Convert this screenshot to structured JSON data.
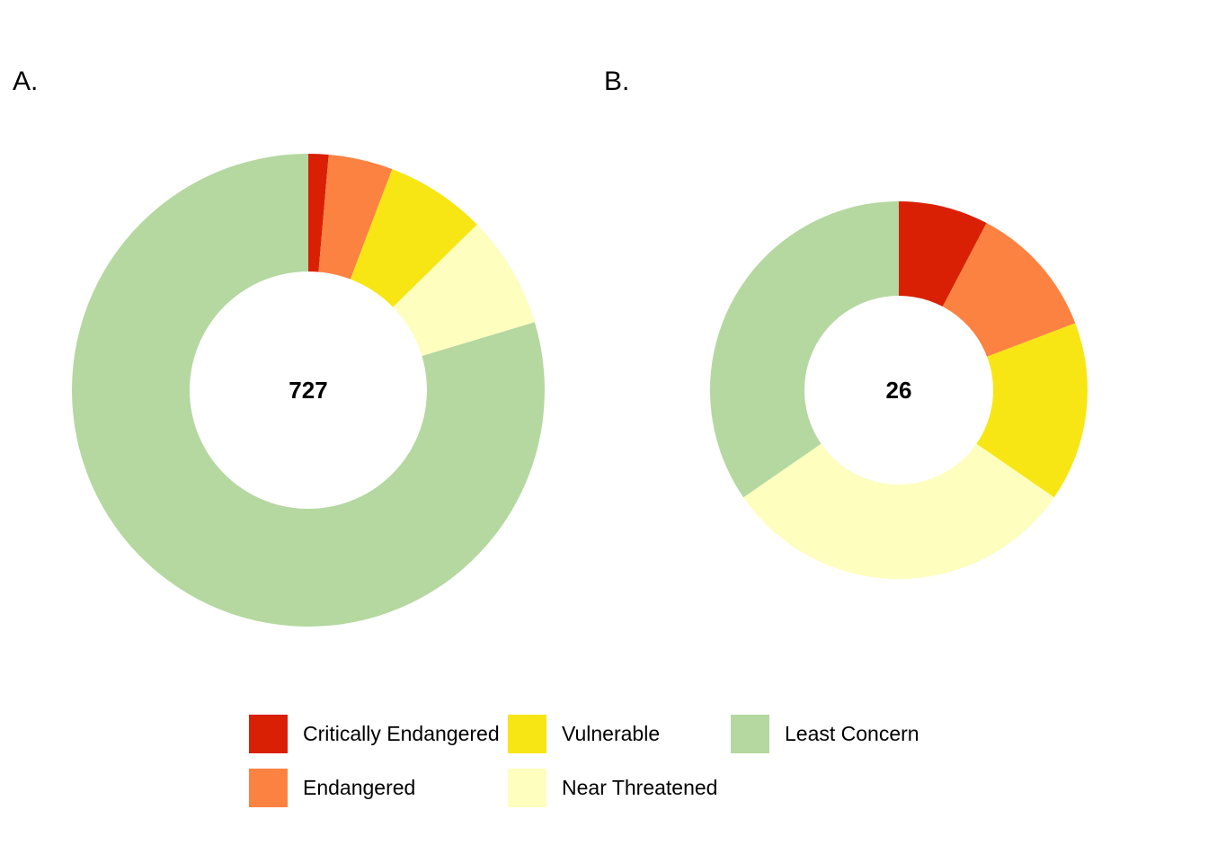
{
  "panels": {
    "a_label": "A.",
    "b_label": "B."
  },
  "legend": [
    {
      "label": "Critically Endangered",
      "color": "#D92005"
    },
    {
      "label": "Endangered",
      "color": "#FC8241"
    },
    {
      "label": "Vulnerable",
      "color": "#F8E614"
    },
    {
      "label": "Near Threatened",
      "color": "#FEFEBE"
    },
    {
      "label": "Least Concern",
      "color": "#B4D8A0"
    }
  ],
  "chart_data": [
    {
      "type": "pie",
      "donut": true,
      "panel": "A.",
      "center_label": "727",
      "categories": [
        "Critically Endangered",
        "Endangered",
        "Vulnerable",
        "Near Threatened",
        "Least Concern"
      ],
      "values": [
        10,
        32,
        50,
        56,
        579
      ]
    },
    {
      "type": "pie",
      "donut": true,
      "panel": "B.",
      "center_label": "26",
      "categories": [
        "Critically Endangered",
        "Endangered",
        "Vulnerable",
        "Near Threatened",
        "Least Concern"
      ],
      "values": [
        2,
        3,
        4,
        8,
        9
      ]
    }
  ]
}
